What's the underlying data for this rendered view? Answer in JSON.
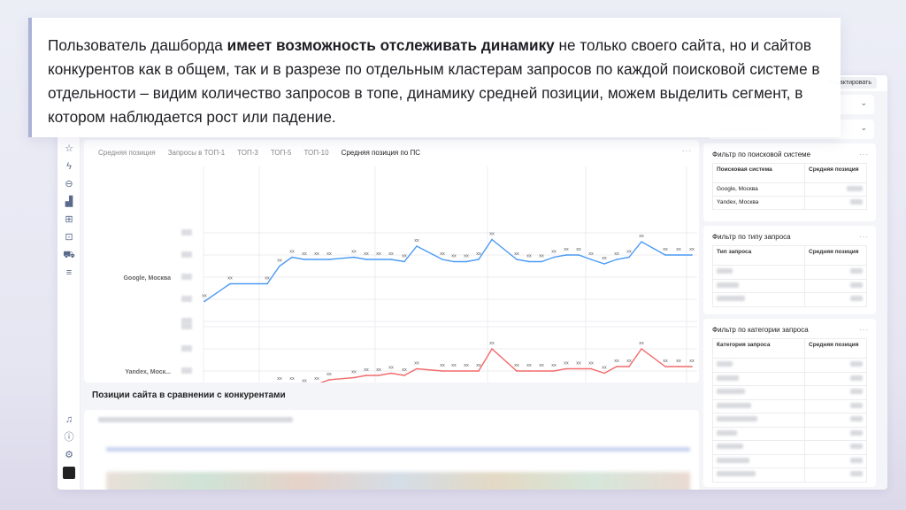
{
  "overlay": {
    "text_before": "Пользователь дашборда ",
    "text_bold": "имеет возможность отслеживать динамику",
    "text_after": " не только своего сайта, но и сайтов конкурентов как в общем, так и в разрезе по отдельным кластерам запросов по каждой поисковой системе в отдельности – видим количество запросов в топе, динамику средней позиции, можем выделить сегмент, в котором наблюдается рост или падение."
  },
  "topbar": {
    "edit_label": "Редактировать"
  },
  "sidebar": {
    "icons": [
      "star-icon",
      "lightning-icon",
      "link-icon",
      "bar-chart-icon",
      "grid-icon",
      "monitor-icon",
      "cart-icon",
      "sliders-icon",
      "bell-icon",
      "help-icon",
      "settings-icon"
    ]
  },
  "chart_tabs": [
    "Средняя позиция",
    "Запросы в ТОП-1",
    "ТОП-3",
    "ТОП-5",
    "ТОП-10",
    "Средняя позиция по ПС"
  ],
  "active_tab": 5,
  "menu_dots": "···",
  "chart_data": {
    "type": "line",
    "panels": [
      {
        "label": "Google, Москва",
        "series": "Google, Москва",
        "color": "#4a9af5",
        "ylim": [
          0,
          4
        ],
        "values": [
          0.9,
          1.7,
          1.7,
          2.5,
          2.9,
          2.8,
          2.8,
          2.8,
          2.9,
          2.8,
          2.8,
          2.8,
          2.7,
          3.4,
          2.8,
          2.7,
          2.7,
          2.8,
          3.7,
          2.8,
          2.7,
          2.7,
          2.9,
          3.0,
          3.0,
          2.8,
          2.6,
          2.8,
          2.9,
          3.6,
          3.0,
          3.0,
          3.0
        ]
      },
      {
        "label": "Yandex, Моск...",
        "series": "Yandex, Москва",
        "color": "#f26b6b",
        "ylim": [
          0,
          4
        ],
        "values": [
          1.1,
          0.7,
          0.9,
          1.4,
          1.4,
          1.3,
          1.4,
          1.6,
          1.7,
          1.8,
          1.8,
          1.9,
          1.8,
          2.1,
          2.0,
          2.0,
          2.0,
          2.0,
          3.0,
          2.0,
          2.0,
          2.0,
          2.0,
          2.1,
          2.1,
          2.1,
          1.9,
          2.2,
          2.2,
          3.0,
          2.2,
          2.2,
          2.2
        ]
      }
    ],
    "point_label": "xx",
    "legend": [
      "Google, Москва",
      "Yandex, Москва"
    ],
    "legend_placement": "bottom",
    "grid": true
  },
  "filters": {
    "search_engine": {
      "title": "Фильтр по поисковой системе",
      "col1": "Поисковая система",
      "col2": "Средняя позиция",
      "rows": [
        "Google, Москва",
        "Yandex, Москва"
      ]
    },
    "query_type": {
      "title": "Фильтр по типу запроса",
      "col1": "Тип запроса",
      "col2": "Средняя позиция"
    },
    "query_category": {
      "title": "Фильтр по категории запроса",
      "col1": "Категория запроса",
      "col2": "Средняя позиция"
    }
  },
  "competitors": {
    "title": "Позиции сайта в сравнении с конкурентами"
  }
}
